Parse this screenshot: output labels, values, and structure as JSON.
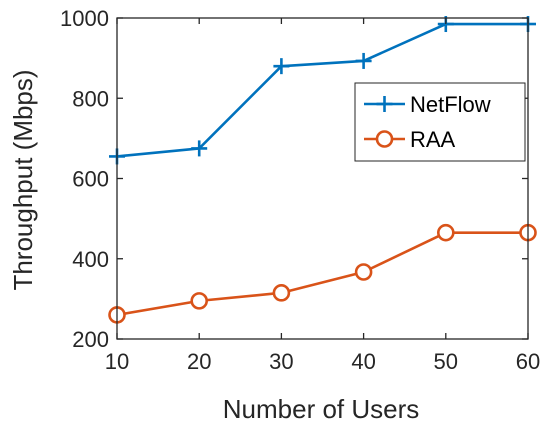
{
  "chart_data": {
    "type": "line",
    "title": "",
    "xlabel": "Number of Users",
    "ylabel": "Throughput (Mbps)",
    "x": [
      10,
      20,
      30,
      40,
      50,
      60
    ],
    "xlim": [
      10,
      60
    ],
    "ylim": [
      200,
      1000
    ],
    "xticks": [
      "10",
      "20",
      "30",
      "40",
      "50",
      "60"
    ],
    "yticks": [
      "200",
      "400",
      "600",
      "800",
      "1000"
    ],
    "grid": false,
    "legend_position": "right, upper-middle",
    "series": [
      {
        "name": "NetFlow",
        "marker": "plus",
        "color": "#0072BD",
        "values": [
          655,
          675,
          880,
          893,
          985,
          985
        ]
      },
      {
        "name": "RAA",
        "marker": "circle",
        "color": "#D95319",
        "values": [
          260,
          295,
          315,
          367,
          465,
          465
        ]
      }
    ]
  }
}
